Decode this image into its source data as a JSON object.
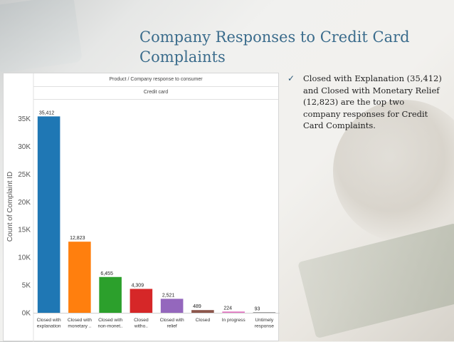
{
  "slide": {
    "title": "Company Responses to Credit Card Complaints",
    "bullet_text": "Closed with Explanation (35,412) and Closed with Monetary Relief (12,823) are the top two company responses for Credit Card Complaints.",
    "bullet_icon": "checkmark-icon"
  },
  "chart_data": {
    "type": "bar",
    "header_row1": "Product  /  Company response to consumer",
    "header_row2": "Credit card",
    "ylabel": "Count of Complaint ID",
    "ylim": [
      0,
      37000
    ],
    "yticks": [
      0,
      5000,
      10000,
      15000,
      20000,
      25000,
      30000,
      35000
    ],
    "ytick_labels": [
      "0K",
      "5K",
      "10K",
      "15K",
      "20K",
      "25K",
      "30K",
      "35K"
    ],
    "grid": false,
    "categories": [
      [
        "Closed with",
        "explanation"
      ],
      [
        "Closed with",
        "monetary .."
      ],
      [
        "Closed with",
        "non-monet.."
      ],
      [
        "Closed",
        "witho.."
      ],
      [
        "Closed with",
        "relief"
      ],
      [
        "Closed"
      ],
      [
        "In progress"
      ],
      [
        "Untimely",
        "response"
      ]
    ],
    "values": [
      35412,
      12823,
      6455,
      4309,
      2521,
      489,
      224,
      93
    ],
    "value_labels": [
      "35,412",
      "12,823",
      "6,455",
      "4,309",
      "2,521",
      "489",
      "224",
      "93"
    ],
    "colors": [
      "#1f77b4",
      "#ff7f0e",
      "#2ca02c",
      "#d62728",
      "#9467bd",
      "#8c564b",
      "#e377c2",
      "#7f7f7f"
    ]
  }
}
